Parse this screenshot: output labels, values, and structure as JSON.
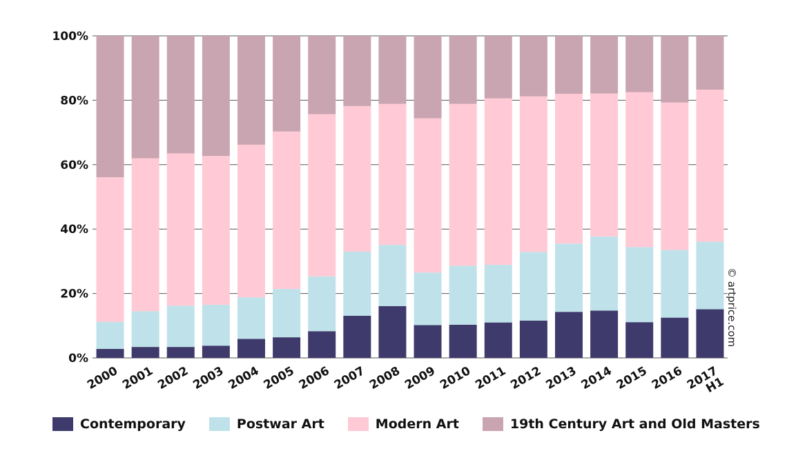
{
  "chart_data": {
    "type": "bar",
    "stacked": true,
    "categories": [
      "2000",
      "2001",
      "2002",
      "2003",
      "2004",
      "2005",
      "2006",
      "2007",
      "2008",
      "2009",
      "2010",
      "2011",
      "2012",
      "2013",
      "2014",
      "2015",
      "2016",
      "2017 H1"
    ],
    "category_lines": [
      [
        "2000"
      ],
      [
        "2001"
      ],
      [
        "2002"
      ],
      [
        "2003"
      ],
      [
        "2004"
      ],
      [
        "2005"
      ],
      [
        "2006"
      ],
      [
        "2007"
      ],
      [
        "2008"
      ],
      [
        "2009"
      ],
      [
        "2010"
      ],
      [
        "2011"
      ],
      [
        "2012"
      ],
      [
        "2013"
      ],
      [
        "2014"
      ],
      [
        "2015"
      ],
      [
        "2016"
      ],
      [
        "2017",
        "H1"
      ]
    ],
    "series": [
      {
        "name": "Contemporary",
        "color": "#3f3a6c",
        "values": [
          2.8,
          3.4,
          3.4,
          3.8,
          5.9,
          6.4,
          8.3,
          13.1,
          16.1,
          10.2,
          10.3,
          11.0,
          11.6,
          14.3,
          14.7,
          11.1,
          12.5,
          15.1
        ]
      },
      {
        "name": "Postwar Art",
        "color": "#bfe2ea",
        "values": [
          8.4,
          11.1,
          12.8,
          12.7,
          12.9,
          15.0,
          17.0,
          19.9,
          19.0,
          16.3,
          18.3,
          17.9,
          21.3,
          21.2,
          23.0,
          23.3,
          21.0,
          21.0
        ]
      },
      {
        "name": "Modern Art",
        "color": "#ffcad6",
        "values": [
          44.9,
          47.5,
          47.3,
          46.2,
          47.4,
          48.9,
          50.4,
          45.2,
          43.8,
          47.9,
          50.3,
          51.7,
          48.3,
          46.5,
          44.4,
          48.1,
          45.8,
          47.2
        ]
      },
      {
        "name": "19th Century Art and Old Masters",
        "color": "#c9a5b1",
        "values": [
          43.9,
          38.0,
          36.5,
          37.3,
          33.8,
          29.7,
          24.3,
          21.8,
          21.1,
          25.6,
          21.1,
          19.4,
          18.8,
          18.0,
          17.9,
          17.5,
          20.7,
          16.7
        ]
      }
    ],
    "yticks": [
      "0%",
      "20%",
      "40%",
      "60%",
      "80%",
      "100%"
    ],
    "ylim": [
      0,
      100
    ],
    "grid": true,
    "legend_position": "bottom",
    "xlabel": "",
    "ylabel": ""
  },
  "credit": "© artprice.com",
  "legend": [
    {
      "label": "Contemporary",
      "color": "#3f3a6c"
    },
    {
      "label": "Postwar Art",
      "color": "#bfe2ea"
    },
    {
      "label": "Modern Art",
      "color": "#ffcad6"
    },
    {
      "label": "19th Century Art and Old Masters",
      "color": "#c9a5b1"
    }
  ]
}
